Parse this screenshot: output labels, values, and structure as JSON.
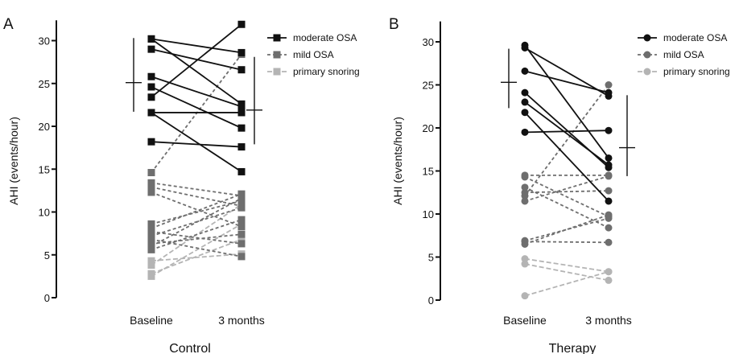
{
  "colors": {
    "moderate": "#111111",
    "mild": "#6e6e6e",
    "primary": "#b4b4b4",
    "axis": "#111111"
  },
  "chart_data": [
    {
      "panel": "A",
      "type": "line",
      "title": "Control",
      "ylabel": "AHI (events/hour)",
      "categories": [
        "Baseline",
        "3 months"
      ],
      "ylim": [
        0,
        32
      ],
      "yticks": [
        0,
        5,
        10,
        15,
        20,
        25,
        30
      ],
      "marker": "square",
      "legend": [
        "moderate OSA",
        "mild OSA",
        "primary snoring"
      ],
      "series": [
        {
          "name": "moderate OSA",
          "lines": [
            [
              30.2,
              22.6
            ],
            [
              30.2,
              28.6
            ],
            [
              29.0,
              26.6
            ],
            [
              25.8,
              22.3
            ],
            [
              24.6,
              19.8
            ],
            [
              23.4,
              31.9
            ],
            [
              21.6,
              21.6
            ],
            [
              18.2,
              17.6
            ],
            [
              21.6,
              14.7
            ]
          ]
        },
        {
          "name": "mild OSA",
          "lines": [
            [
              14.6,
              28.4
            ],
            [
              13.4,
              11.9
            ],
            [
              12.9,
              10.7
            ],
            [
              12.3,
              8.3
            ],
            [
              8.6,
              11.3
            ],
            [
              8.1,
              12.1
            ],
            [
              7.7,
              6.3
            ],
            [
              7.2,
              10.5
            ],
            [
              6.8,
              4.8
            ],
            [
              6.3,
              7.4
            ],
            [
              6.0,
              11.6
            ],
            [
              5.6,
              9.1
            ]
          ]
        },
        {
          "name": "primary snoring",
          "lines": [
            [
              4.3,
              5.1
            ],
            [
              3.8,
              10.9
            ],
            [
              2.8,
              6.8
            ],
            [
              2.5,
              8.6
            ]
          ]
        }
      ],
      "mean_sd": [
        {
          "category": "Baseline",
          "mean": 25.1,
          "low": 21.7,
          "high": 30.3
        },
        {
          "category": "3 months",
          "mean": 21.9,
          "low": 17.9,
          "high": 28.1
        }
      ]
    },
    {
      "panel": "B",
      "type": "line",
      "title": "Therapy",
      "ylabel": "AHI (events/hour)",
      "categories": [
        "Baseline",
        "3 months"
      ],
      "ylim": [
        0,
        32
      ],
      "yticks": [
        0,
        5,
        10,
        15,
        20,
        25,
        30
      ],
      "marker": "circle",
      "legend": [
        "moderate OSA",
        "mild OSA",
        "primary snoring"
      ],
      "series": [
        {
          "name": "moderate OSA",
          "lines": [
            [
              29.6,
              16.5
            ],
            [
              29.3,
              23.7
            ],
            [
              26.6,
              24.1
            ],
            [
              24.1,
              15.4
            ],
            [
              23.0,
              15.7
            ],
            [
              21.8,
              11.5
            ],
            [
              19.5,
              19.7
            ]
          ]
        },
        {
          "name": "mild OSA",
          "lines": [
            [
              14.5,
              14.5
            ],
            [
              14.3,
              9.7
            ],
            [
              13.1,
              8.4
            ],
            [
              12.5,
              12.7
            ],
            [
              12.1,
              25.0
            ],
            [
              11.5,
              14.4
            ],
            [
              6.9,
              9.5
            ],
            [
              6.8,
              6.7
            ],
            [
              6.5,
              9.9
            ]
          ]
        },
        {
          "name": "primary snoring",
          "lines": [
            [
              4.8,
              3.3
            ],
            [
              4.2,
              2.3
            ],
            [
              0.5,
              3.3
            ]
          ]
        }
      ],
      "mean_sd": [
        {
          "category": "Baseline",
          "mean": 25.3,
          "low": 22.3,
          "high": 29.2
        },
        {
          "category": "3 months",
          "mean": 17.7,
          "low": 14.4,
          "high": 23.8
        }
      ]
    }
  ]
}
